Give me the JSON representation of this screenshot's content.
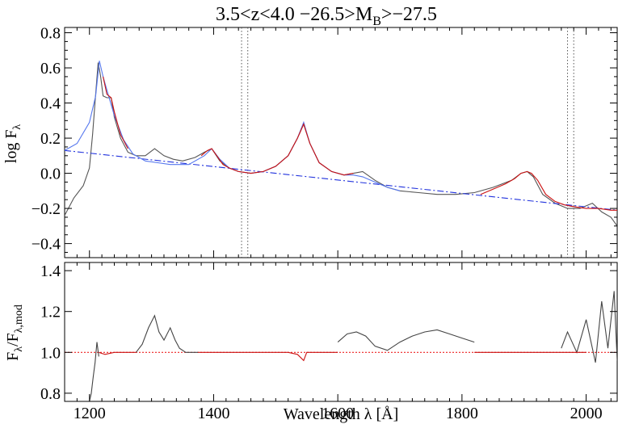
{
  "chart_data": [
    {
      "type": "line",
      "title": "3.5<z<4.0 −26.5>M_B>−27.5",
      "title_parts": {
        "main": "3.5<z<4.0 −26.5>M",
        "sub": "B",
        "tail": ">−27.5"
      },
      "ylabel_parts": {
        "main": "log F",
        "sub": "λ"
      },
      "xlim": [
        1160,
        2050
      ],
      "ylim": [
        -0.48,
        0.83
      ],
      "yticks": [
        -0.4,
        -0.2,
        0.0,
        0.2,
        0.4,
        0.6,
        0.8
      ],
      "ytick_labels": [
        "−0.4",
        "−0.2",
        "0.0",
        "0.2",
        "0.4",
        "0.6",
        "0.8"
      ],
      "vlines": [
        1445,
        1455,
        1970,
        1980
      ],
      "series": [
        {
          "role": "observed composite spectrum",
          "color": "#555555",
          "x": [
            1160,
            1175,
            1190,
            1200,
            1205,
            1210,
            1214,
            1218,
            1222,
            1228,
            1235,
            1240,
            1250,
            1262,
            1275,
            1290,
            1305,
            1320,
            1335,
            1350,
            1370,
            1385,
            1397,
            1410,
            1425,
            1440,
            1460,
            1480,
            1500,
            1520,
            1535,
            1545,
            1555,
            1570,
            1590,
            1610,
            1625,
            1640,
            1660,
            1680,
            1700,
            1730,
            1760,
            1790,
            1820,
            1850,
            1880,
            1895,
            1905,
            1915,
            1930,
            1950,
            1970,
            1990,
            2010,
            2025,
            2040,
            2050
          ],
          "y": [
            -0.24,
            -0.14,
            -0.07,
            0.03,
            0.22,
            0.45,
            0.63,
            0.55,
            0.44,
            0.43,
            0.43,
            0.32,
            0.2,
            0.12,
            0.1,
            0.1,
            0.14,
            0.1,
            0.08,
            0.07,
            0.09,
            0.12,
            0.14,
            0.07,
            0.03,
            0.01,
            0.0,
            0.01,
            0.04,
            0.1,
            0.2,
            0.28,
            0.17,
            0.06,
            0.01,
            -0.01,
            0.0,
            0.01,
            -0.04,
            -0.08,
            -0.1,
            -0.11,
            -0.12,
            -0.12,
            -0.11,
            -0.08,
            -0.04,
            0.0,
            0.01,
            -0.02,
            -0.12,
            -0.17,
            -0.2,
            -0.2,
            -0.17,
            -0.22,
            -0.25,
            -0.3
          ]
        },
        {
          "role": "continuum fit",
          "color": "#2233dd",
          "dash": "dash-dot",
          "x": [
            1160,
            2050
          ],
          "y": [
            0.13,
            -0.21
          ]
        },
        {
          "role": "full model",
          "color": "#5577ee",
          "x": [
            1160,
            1180,
            1200,
            1210,
            1216,
            1222,
            1230,
            1240,
            1255,
            1270,
            1290,
            1310,
            1330,
            1360,
            1385,
            1397,
            1410,
            1425,
            1440,
            1460,
            1480,
            1500,
            1520,
            1535,
            1545,
            1555,
            1570,
            1590,
            1610,
            1625,
            1640,
            1660,
            1680,
            1700
          ],
          "y": [
            0.13,
            0.17,
            0.29,
            0.44,
            0.64,
            0.55,
            0.45,
            0.33,
            0.19,
            0.11,
            0.07,
            0.06,
            0.05,
            0.05,
            0.1,
            0.14,
            0.08,
            0.03,
            0.01,
            0.0,
            0.01,
            0.04,
            0.1,
            0.2,
            0.29,
            0.17,
            0.06,
            0.01,
            -0.01,
            -0.01,
            -0.02,
            -0.05,
            -0.08,
            -0.1
          ]
        },
        {
          "role": "fitted regions",
          "color": "#cc1111",
          "segments": [
            {
              "x": [
                1222,
                1228,
                1235,
                1240,
                1250,
                1262
              ],
              "y": [
                0.55,
                0.45,
                0.43,
                0.35,
                0.22,
                0.14
              ]
            },
            {
              "x": [
                1380,
                1390,
                1397,
                1405,
                1415,
                1425,
                1440,
                1460,
                1480,
                1500,
                1520,
                1535,
                1545,
                1555,
                1570,
                1590,
                1610,
                1625
              ],
              "y": [
                0.1,
                0.13,
                0.14,
                0.1,
                0.05,
                0.03,
                0.01,
                0.0,
                0.01,
                0.04,
                0.1,
                0.2,
                0.28,
                0.17,
                0.06,
                0.01,
                -0.01,
                0.0
              ]
            },
            {
              "x": [
                1830,
                1850,
                1870,
                1885,
                1895,
                1905,
                1912,
                1922,
                1935,
                1950,
                1965,
                1980,
                2000,
                2020,
                2040,
                2050
              ],
              "y": [
                -0.12,
                -0.09,
                -0.06,
                -0.03,
                0.0,
                0.01,
                0.0,
                -0.04,
                -0.12,
                -0.16,
                -0.18,
                -0.19,
                -0.2,
                -0.2,
                -0.21,
                -0.21
              ]
            }
          ]
        }
      ]
    },
    {
      "type": "line",
      "xlabel_parts": {
        "main": "Wavelength λ [Å]"
      },
      "ylabel_parts": {
        "main": "F",
        "sub1": "λ",
        "mid": "/F",
        "sub2": "λ,mod"
      },
      "xlim": [
        1160,
        2050
      ],
      "ylim": [
        0.76,
        1.44
      ],
      "xticks": [
        1200,
        1400,
        1600,
        1800,
        2000
      ],
      "xtick_labels": [
        "1200",
        "1400",
        "1600",
        "1800",
        "2000"
      ],
      "yticks": [
        0.8,
        1.0,
        1.2,
        1.4
      ],
      "ytick_labels": [
        "0.8",
        "1.0",
        "1.2",
        "1.4"
      ],
      "reference_line": {
        "y": 1.0,
        "color": "#ee2222",
        "style": "dotted"
      },
      "series": [
        {
          "role": "ratio (unfitted regions)",
          "color": "#444444",
          "segments": [
            {
              "x": [
                1200,
                1203,
                1206,
                1209,
                1212,
                1215
              ],
              "y": [
                0.76,
                0.8,
                0.88,
                0.95,
                1.05,
                0.98
              ]
            },
            {
              "x": [
                1275,
                1285,
                1295,
                1305,
                1312,
                1320,
                1330,
                1338,
                1345,
                1355,
                1365,
                1375
              ],
              "y": [
                1.0,
                1.04,
                1.12,
                1.18,
                1.1,
                1.06,
                1.12,
                1.06,
                1.02,
                1.0,
                1.0,
                1.0
              ]
            },
            {
              "x": [
                1600,
                1615,
                1630,
                1645,
                1660,
                1680,
                1700,
                1720,
                1740,
                1760,
                1780,
                1800,
                1820
              ],
              "y": [
                1.05,
                1.09,
                1.1,
                1.08,
                1.03,
                1.01,
                1.05,
                1.08,
                1.1,
                1.11,
                1.09,
                1.07,
                1.05
              ]
            },
            {
              "x": [
                1960,
                1970,
                1985,
                2000,
                2015,
                2025,
                2035,
                2045,
                2050
              ],
              "y": [
                1.02,
                1.1,
                1.0,
                1.16,
                0.95,
                1.25,
                1.02,
                1.3,
                0.96
              ]
            }
          ]
        },
        {
          "role": "ratio (fitted regions)",
          "color": "#cc1111",
          "segments": [
            {
              "x": [
                1215,
                1225,
                1240,
                1260,
                1275
              ],
              "y": [
                1.0,
                0.99,
                1.0,
                1.0,
                1.0
              ]
            },
            {
              "x": [
                1375,
                1400,
                1425,
                1450,
                1475,
                1500,
                1520,
                1535,
                1545,
                1550,
                1560,
                1580,
                1600
              ],
              "y": [
                1.0,
                1.0,
                1.0,
                1.0,
                1.0,
                1.0,
                1.0,
                0.99,
                0.96,
                1.0,
                1.0,
                1.0,
                1.0
              ]
            },
            {
              "x": [
                1820,
                1850,
                1880,
                1910,
                1940,
                1970,
                2000
              ],
              "y": [
                1.0,
                1.0,
                1.0,
                1.0,
                1.0,
                1.0,
                1.0
              ]
            }
          ]
        }
      ]
    }
  ]
}
